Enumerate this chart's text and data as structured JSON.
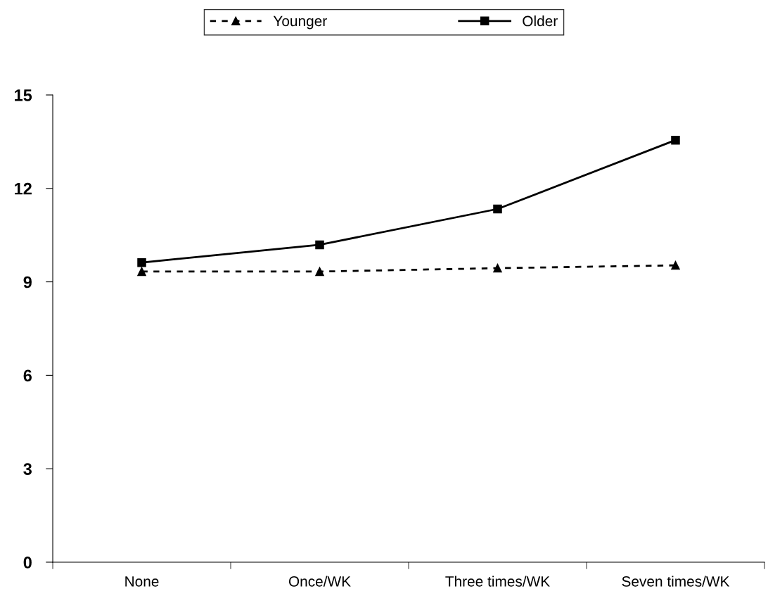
{
  "chart_data": {
    "type": "line",
    "categories": [
      "None",
      "Once/WK",
      "Three times/WK",
      "Seven times/WK"
    ],
    "series": [
      {
        "name": "Younger",
        "color": "#000000",
        "values": [
          9.33,
          9.33,
          9.44,
          9.53
        ],
        "marker": "triangle",
        "line_style": "dashed"
      },
      {
        "name": "Older",
        "color": "#000000",
        "values": [
          9.62,
          10.19,
          11.34,
          13.55
        ],
        "marker": "square",
        "line_style": "solid"
      }
    ],
    "ylim": [
      0,
      15
    ],
    "yticks": [
      0,
      3,
      6,
      9,
      12,
      15
    ],
    "grid": false,
    "legend": "top"
  }
}
